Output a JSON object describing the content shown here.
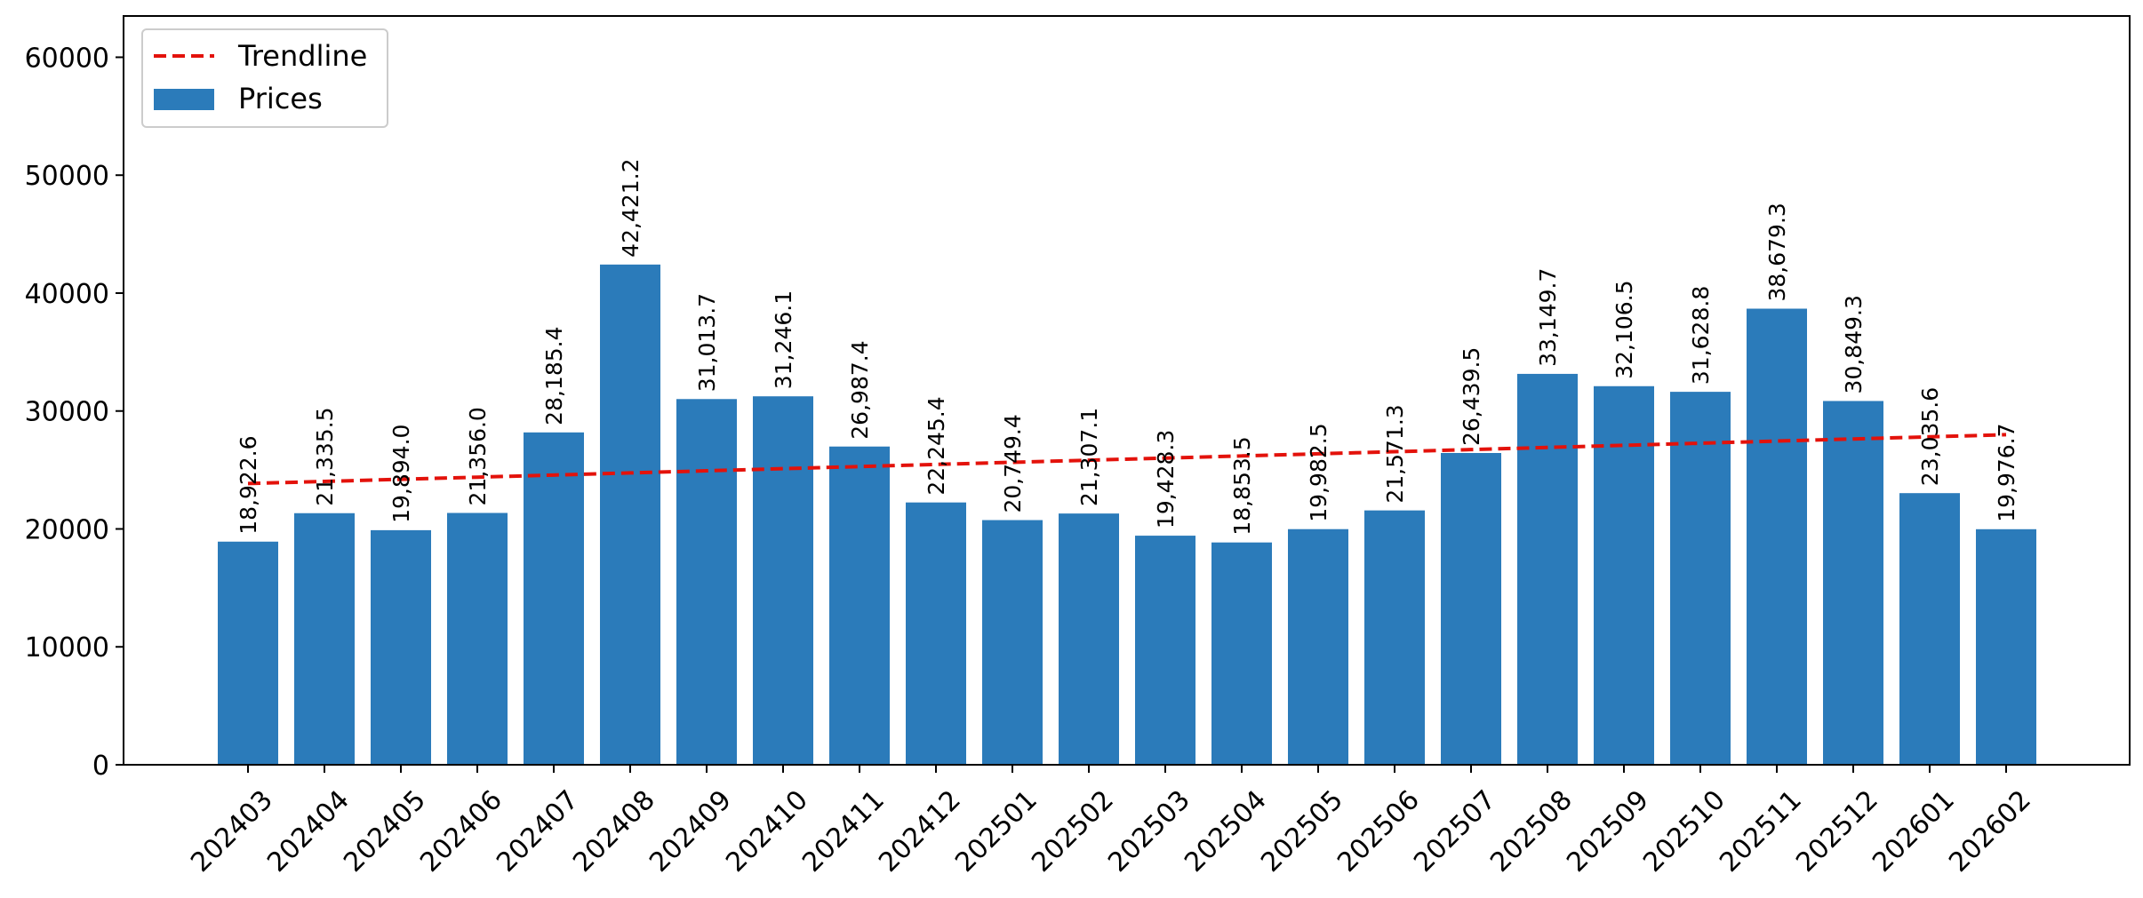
{
  "chart_data": {
    "type": "bar",
    "categories": [
      "202403",
      "202404",
      "202405",
      "202406",
      "202407",
      "202408",
      "202409",
      "202410",
      "202411",
      "202412",
      "202501",
      "202502",
      "202503",
      "202504",
      "202505",
      "202506",
      "202507",
      "202508",
      "202509",
      "202510",
      "202511",
      "202512",
      "202601",
      "202602"
    ],
    "series": [
      {
        "name": "Prices",
        "type": "bar",
        "color": "#2b7bba",
        "values": [
          18922.6,
          21335.5,
          19894.0,
          21356.0,
          28185.4,
          42421.2,
          31013.7,
          31246.1,
          26987.4,
          22245.4,
          20749.4,
          21307.1,
          19428.3,
          18853.5,
          19982.5,
          21571.3,
          26439.5,
          33149.7,
          32106.5,
          31628.8,
          38679.3,
          30849.3,
          23035.6,
          19976.7
        ],
        "data_labels": [
          "18,922.6",
          "21,335.5",
          "19,894.0",
          "21,356.0",
          "28,185.4",
          "42,421.2",
          "31,013.7",
          "31,246.1",
          "26,987.4",
          "22,245.4",
          "20,749.4",
          "21,307.1",
          "19,428.3",
          "18,853.5",
          "19,982.5",
          "21,571.3",
          "26,439.5",
          "33,149.7",
          "32,106.5",
          "31,628.8",
          "38,679.3",
          "30,849.3",
          "23,035.6",
          "19,976.7"
        ]
      },
      {
        "name": "Trendline",
        "type": "line",
        "style": "dashed",
        "color": "#e3120b",
        "values": [
          23850,
          24030,
          24210,
          24390,
          24570,
          24750,
          24930,
          25110,
          25290,
          25470,
          25650,
          25830,
          26010,
          26190,
          26370,
          26550,
          26730,
          26910,
          27090,
          27270,
          27450,
          27630,
          27810,
          27990
        ]
      }
    ],
    "title": "",
    "xlabel": "",
    "ylabel": "",
    "ylim": [
      0,
      63500
    ],
    "yticks": [
      0,
      10000,
      20000,
      30000,
      40000,
      50000,
      60000
    ],
    "ytick_labels": [
      "0",
      "10000",
      "20000",
      "30000",
      "40000",
      "50000",
      "60000"
    ],
    "grid": false,
    "legend": {
      "position": "top-left",
      "entries": [
        "Trendline",
        "Prices"
      ]
    }
  }
}
